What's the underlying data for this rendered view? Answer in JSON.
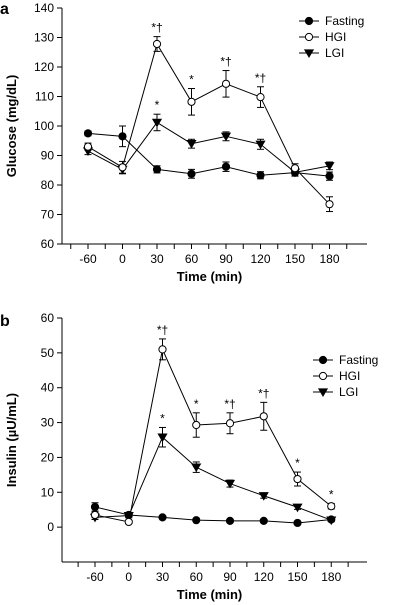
{
  "chart_data": [
    {
      "type": "line",
      "panel": "a",
      "x": [
        -60,
        0,
        30,
        60,
        90,
        120,
        150,
        180
      ],
      "xticks": [
        "-60",
        "0",
        "30",
        "60",
        "90",
        "120",
        "150",
        "180"
      ],
      "xlabel": "Time (min)",
      "ylabel": "Glucose (mg/dL)",
      "ylim": [
        60,
        140
      ],
      "yticks": [
        60,
        70,
        80,
        90,
        100,
        110,
        120,
        130,
        140
      ],
      "legend_position": "top-right",
      "series": [
        {
          "name": "Fasting",
          "marker": "filled-circle",
          "values": [
            97.5,
            96.5,
            85.3,
            83.8,
            86.2,
            83.3,
            84.2,
            83.0
          ],
          "errors": [
            0.8,
            3.5,
            1.2,
            1.5,
            1.6,
            1.2,
            1.1,
            1.4
          ]
        },
        {
          "name": "HGI",
          "marker": "open-circle",
          "values": [
            93.0,
            86.0,
            127.8,
            108.2,
            114.3,
            109.8,
            85.7,
            73.5
          ],
          "errors": [
            1.2,
            2.0,
            2.5,
            4.5,
            4.5,
            3.5,
            1.5,
            2.5
          ]
        },
        {
          "name": "LGI",
          "marker": "filled-triangle-down",
          "values": [
            91.5,
            85.3,
            101.2,
            94.0,
            96.5,
            93.8,
            84.3,
            86.5
          ],
          "errors": [
            1.2,
            1.5,
            2.8,
            1.5,
            1.5,
            1.7,
            1.3,
            1.3
          ]
        }
      ],
      "annotations": [
        {
          "x": 30,
          "text": "*†",
          "above": "HGI"
        },
        {
          "x": 30,
          "text": "*",
          "above": "LGI"
        },
        {
          "x": 60,
          "text": "*",
          "above": "HGI"
        },
        {
          "x": 90,
          "text": "*†",
          "above": "HGI"
        },
        {
          "x": 120,
          "text": "*†",
          "above": "HGI"
        }
      ]
    },
    {
      "type": "line",
      "panel": "b",
      "x": [
        -60,
        0,
        30,
        60,
        90,
        120,
        150,
        180
      ],
      "xticks": [
        "-60",
        "0",
        "30",
        "60",
        "90",
        "120",
        "150",
        "180"
      ],
      "xlabel": "Time (min)",
      "ylabel": "Insulin (µU/mL)",
      "ylim": [
        -10,
        60
      ],
      "yticks": [
        0,
        10,
        20,
        30,
        40,
        50,
        60
      ],
      "legend_position": "top-right",
      "series": [
        {
          "name": "Fasting",
          "marker": "filled-circle",
          "values": [
            5.8,
            3.5,
            2.8,
            2.0,
            1.8,
            1.8,
            1.2,
            2.2
          ],
          "errors": [
            1.2,
            0.6,
            0.3,
            0.3,
            0.3,
            0.3,
            0.3,
            0.4
          ]
        },
        {
          "name": "HGI",
          "marker": "open-circle",
          "values": [
            3.5,
            1.5,
            51.0,
            29.3,
            29.8,
            31.8,
            13.8,
            6.0
          ],
          "errors": [
            0.8,
            0.5,
            3.0,
            3.5,
            3.0,
            4.0,
            2.0,
            0.8
          ]
        },
        {
          "name": "LGI",
          "marker": "filled-triangle-down",
          "values": [
            2.8,
            3.3,
            25.8,
            17.2,
            12.5,
            9.0,
            5.7,
            2.0
          ],
          "errors": [
            0.6,
            0.6,
            2.8,
            1.5,
            1.0,
            0.7,
            0.6,
            0.4
          ]
        }
      ],
      "annotations": [
        {
          "x": 30,
          "text": "*†",
          "above": "HGI"
        },
        {
          "x": 30,
          "text": "*",
          "above": "LGI"
        },
        {
          "x": 60,
          "text": "*",
          "above": "HGI"
        },
        {
          "x": 90,
          "text": "*†",
          "above": "HGI"
        },
        {
          "x": 120,
          "text": "*†",
          "above": "HGI"
        },
        {
          "x": 150,
          "text": "*",
          "above": "HGI"
        },
        {
          "x": 180,
          "text": "*",
          "above": "HGI"
        }
      ]
    }
  ]
}
